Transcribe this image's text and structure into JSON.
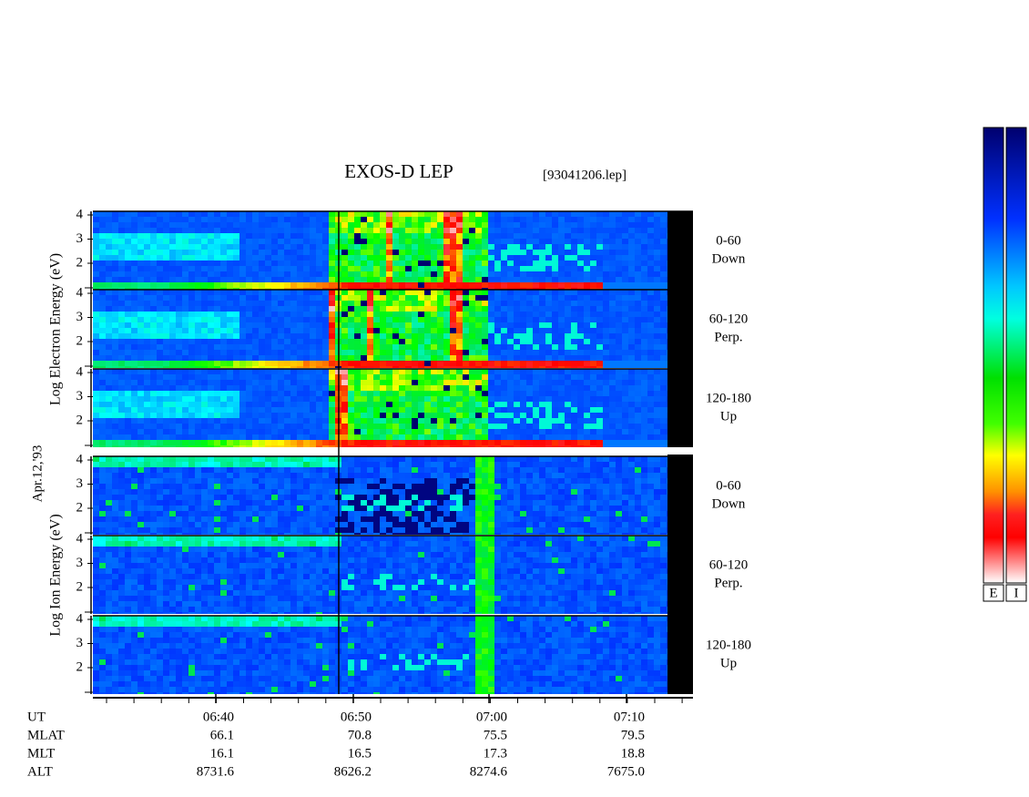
{
  "title": "EXOS-D LEP",
  "file": "[93041206.lep]",
  "date": "Apr.12,'93",
  "groups": [
    {
      "axis_label": "Log Electron Energy (eV)",
      "panels": [
        {
          "angle": "0-60",
          "direction": "Down"
        },
        {
          "angle": "60-120",
          "direction": "Perp."
        },
        {
          "angle": "120-180",
          "direction": "Up"
        }
      ]
    },
    {
      "axis_label": "Log Ion Energy (eV)",
      "panels": [
        {
          "angle": "0-60",
          "direction": "Down"
        },
        {
          "angle": "60-120",
          "direction": "Perp."
        },
        {
          "angle": "120-180",
          "direction": "Up"
        }
      ]
    }
  ],
  "energy_ticks": [
    "4",
    "3",
    "2"
  ],
  "ephemeris": {
    "labels": [
      "UT",
      "MLAT",
      "MLT",
      "ALT"
    ],
    "columns": [
      [
        "06:40",
        "66.1",
        "16.1",
        "8731.6"
      ],
      [
        "06:50",
        "70.8",
        "16.5",
        "8626.2"
      ],
      [
        "07:00",
        "75.5",
        "17.3",
        "8274.6"
      ],
      [
        "07:10",
        "79.5",
        "18.8",
        "7675.0"
      ]
    ]
  },
  "colorbar_labels": [
    "E",
    "I"
  ]
}
